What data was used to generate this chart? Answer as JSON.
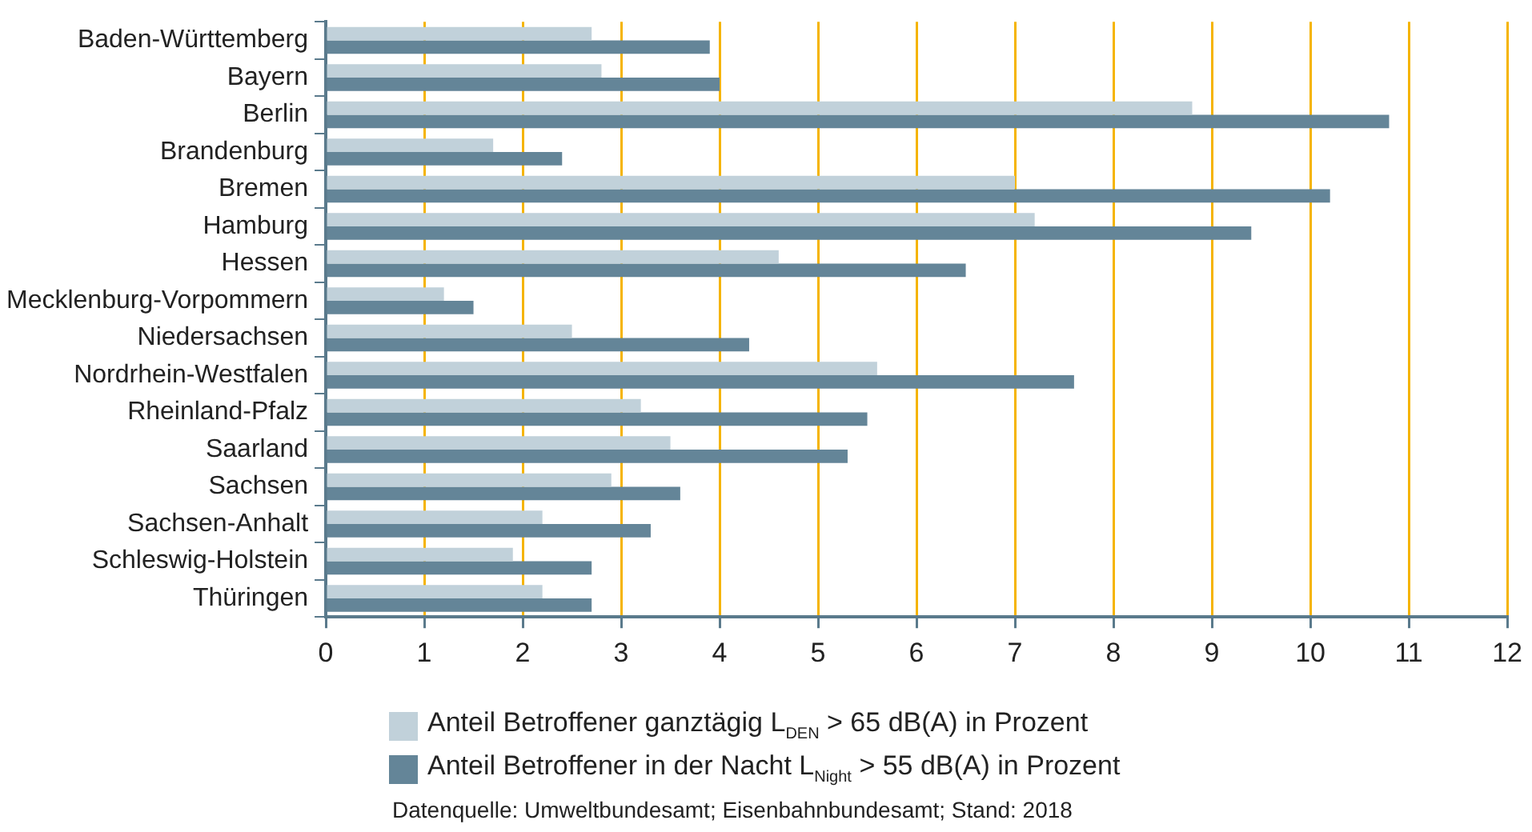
{
  "chart_data": {
    "type": "bar",
    "orientation": "horizontal",
    "categories": [
      "Baden-Württemberg",
      "Bayern",
      "Berlin",
      "Brandenburg",
      "Bremen",
      "Hamburg",
      "Hessen",
      "Mecklenburg-Vorpommern",
      "Niedersachsen",
      "Nordrhein-Westfalen",
      "Rheinland-Pfalz",
      "Saarland",
      "Sachsen",
      "Sachsen-Anhalt",
      "Schleswig-Holstein",
      "Thüringen"
    ],
    "series": [
      {
        "name": "Anteil Betroffener ganztägig  L$_{DEN}$ > 65 dB(A) in Prozent",
        "color": "#c1d1da",
        "values": [
          2.7,
          2.8,
          8.8,
          1.7,
          7.0,
          7.2,
          4.6,
          1.2,
          2.5,
          5.6,
          3.2,
          3.5,
          2.9,
          2.2,
          1.9,
          2.2
        ]
      },
      {
        "name": "Anteil Betroffener in der Nacht  L$_{Night}$ > 55 dB(A) in Prozent",
        "color": "#648598",
        "values": [
          3.9,
          4.0,
          10.8,
          2.4,
          10.2,
          9.4,
          6.5,
          1.5,
          4.3,
          7.6,
          5.5,
          5.3,
          3.6,
          3.3,
          2.7,
          2.7
        ]
      }
    ],
    "xlim": [
      0,
      12
    ],
    "xticks": [
      0,
      1,
      2,
      3,
      4,
      5,
      6,
      7,
      8,
      9,
      10,
      11,
      12
    ],
    "grid": "x",
    "legend": "bottom left",
    "annotations": [
      "Datenquelle: Umweltbundesamt; Eisenbahnbundesamt; Stand: 2018"
    ]
  }
}
